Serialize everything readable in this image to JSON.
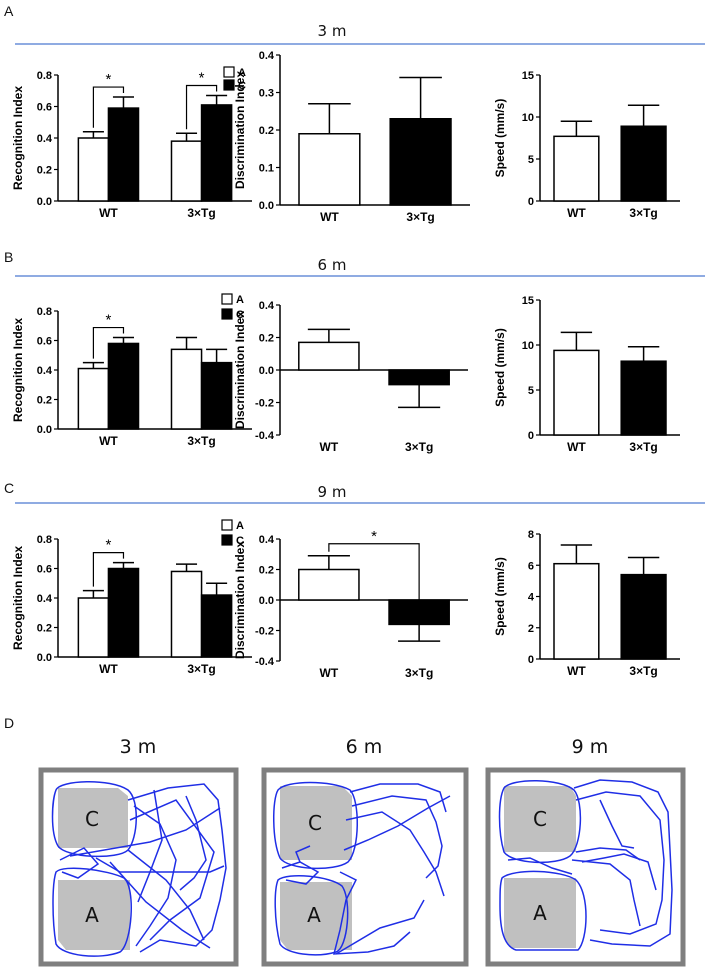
{
  "panel_letters": [
    "A",
    "B",
    "C",
    "D"
  ],
  "row_titles": [
    "3 m",
    "6 m",
    "9 m"
  ],
  "colors": {
    "rule": "#6a8fd8",
    "bar_A": "#ffffff",
    "bar_C": "#000000",
    "bar_edge": "#000000",
    "track": "#1f2ee6",
    "object": "#c0c0c0",
    "arena_border": "#7f7f7f"
  },
  "legend": {
    "A": "A",
    "C": "C"
  },
  "chart_data": [
    {
      "id": "rec_3m",
      "type": "bar",
      "title": "3 m",
      "ylabel": "Recognition Index",
      "categories": [
        "WT",
        "3×Tg"
      ],
      "ylim": [
        0,
        0.8
      ],
      "yticks": [
        "0.0",
        "0.2",
        "0.4",
        "0.6",
        "0.8"
      ],
      "series": [
        {
          "name": "A",
          "values": [
            0.4,
            0.38
          ],
          "errors": [
            0.04,
            0.05
          ]
        },
        {
          "name": "C",
          "values": [
            0.59,
            0.61
          ],
          "errors": [
            0.07,
            0.06
          ]
        }
      ],
      "significance": [
        {
          "category": "WT",
          "label": "*"
        },
        {
          "category": "3×Tg",
          "label": "*"
        }
      ]
    },
    {
      "id": "disc_3m",
      "type": "bar",
      "title": "3 m",
      "ylabel": "Discrimination Index",
      "categories": [
        "WT",
        "3×Tg"
      ],
      "ylim": [
        0,
        0.4
      ],
      "yticks": [
        "0.0",
        "0.1",
        "0.2",
        "0.3",
        "0.4"
      ],
      "values": [
        0.19,
        0.23
      ],
      "errors": [
        0.08,
        0.11
      ]
    },
    {
      "id": "speed_3m",
      "type": "bar",
      "title": "3 m",
      "ylabel": "Speed (mm/s)",
      "categories": [
        "WT",
        "3×Tg"
      ],
      "ylim": [
        0,
        15
      ],
      "yticks": [
        "0",
        "5",
        "10",
        "15"
      ],
      "values": [
        7.7,
        8.9
      ],
      "errors": [
        1.8,
        2.5
      ]
    },
    {
      "id": "rec_6m",
      "type": "bar",
      "title": "6 m",
      "ylabel": "Recognition Index",
      "categories": [
        "WT",
        "3×Tg"
      ],
      "ylim": [
        0,
        0.8
      ],
      "yticks": [
        "0.0",
        "0.2",
        "0.4",
        "0.6",
        "0.8"
      ],
      "series": [
        {
          "name": "A",
          "values": [
            0.41,
            0.54
          ],
          "errors": [
            0.04,
            0.08
          ]
        },
        {
          "name": "C",
          "values": [
            0.58,
            0.45
          ],
          "errors": [
            0.04,
            0.09
          ]
        }
      ],
      "significance": [
        {
          "category": "WT",
          "label": "*"
        }
      ]
    },
    {
      "id": "disc_6m",
      "type": "bar",
      "title": "6 m",
      "ylabel": "Discrimination Index",
      "categories": [
        "WT",
        "3×Tg"
      ],
      "ylim": [
        -0.4,
        0.4
      ],
      "yticks": [
        "-0.4",
        "-0.2",
        "0.0",
        "0.2",
        "0.4"
      ],
      "values": [
        0.17,
        -0.09
      ],
      "errors": [
        0.08,
        0.14
      ]
    },
    {
      "id": "speed_6m",
      "type": "bar",
      "title": "6 m",
      "ylabel": "Speed (mm/s)",
      "categories": [
        "WT",
        "3×Tg"
      ],
      "ylim": [
        0,
        15
      ],
      "yticks": [
        "0",
        "5",
        "10",
        "15"
      ],
      "values": [
        9.4,
        8.2
      ],
      "errors": [
        2.0,
        1.6
      ]
    },
    {
      "id": "rec_9m",
      "type": "bar",
      "title": "9 m",
      "ylabel": "Recognition Index",
      "categories": [
        "WT",
        "3×Tg"
      ],
      "ylim": [
        0,
        0.8
      ],
      "yticks": [
        "0.0",
        "0.2",
        "0.4",
        "0.6",
        "0.8"
      ],
      "series": [
        {
          "name": "A",
          "values": [
            0.4,
            0.58
          ],
          "errors": [
            0.05,
            0.05
          ]
        },
        {
          "name": "C",
          "values": [
            0.6,
            0.42
          ],
          "errors": [
            0.04,
            0.08
          ]
        }
      ],
      "significance": [
        {
          "category": "WT",
          "label": "*"
        }
      ]
    },
    {
      "id": "disc_9m",
      "type": "bar",
      "title": "9 m",
      "ylabel": "Discrimination Index",
      "categories": [
        "WT",
        "3×Tg"
      ],
      "ylim": [
        -0.4,
        0.4
      ],
      "yticks": [
        "-0.4",
        "-0.2",
        "0.0",
        "0.2",
        "0.4"
      ],
      "values": [
        0.2,
        -0.16
      ],
      "errors": [
        0.09,
        0.11
      ],
      "significance": [
        {
          "between": [
            "WT",
            "3×Tg"
          ],
          "label": "*"
        }
      ]
    },
    {
      "id": "speed_9m",
      "type": "bar",
      "title": "9 m",
      "ylabel": "Speed (mm/s)",
      "categories": [
        "WT",
        "3×Tg"
      ],
      "ylim": [
        0,
        8
      ],
      "yticks": [
        "0",
        "2",
        "4",
        "6",
        "8"
      ],
      "values": [
        6.1,
        5.4
      ],
      "errors": [
        1.2,
        1.1
      ]
    }
  ],
  "tracks": [
    {
      "title": "3 m",
      "objects": [
        "C",
        "A"
      ]
    },
    {
      "title": "6 m",
      "objects": [
        "C",
        "A"
      ]
    },
    {
      "title": "9 m",
      "objects": [
        "C",
        "A"
      ]
    }
  ]
}
